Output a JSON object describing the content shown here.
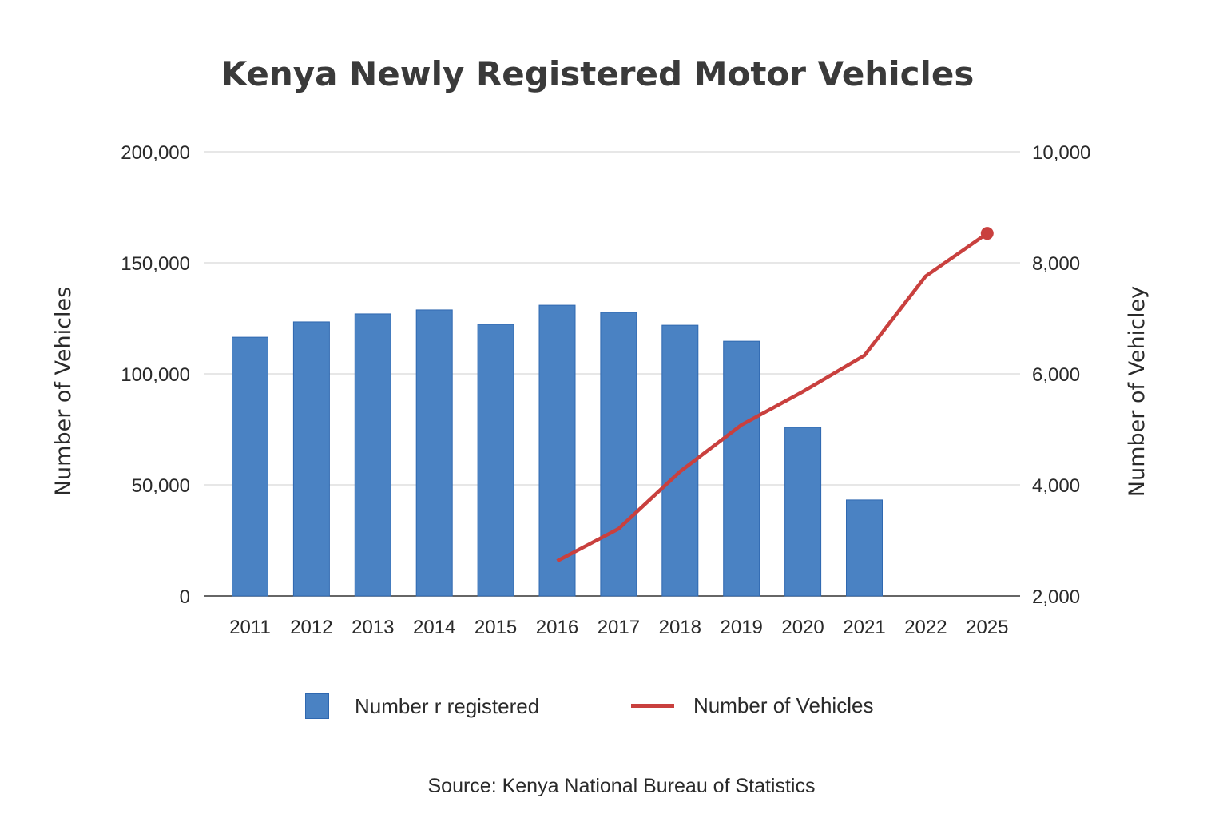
{
  "chart_data": {
    "type": "bar+line",
    "title": "Kenya Newly Registered Motor Vehicles",
    "categories": [
      "2011",
      "2012",
      "2013",
      "2014",
      "2015",
      "2016",
      "2017",
      "2018",
      "2019",
      "2020",
      "2021",
      "2022",
      "2025"
    ],
    "series": [
      {
        "name": "Number r registered",
        "type": "bar",
        "axis": "left",
        "color": "#4a82c3",
        "values": [
          116500,
          123400,
          127000,
          128800,
          122300,
          130900,
          127700,
          121900,
          114700,
          75900,
          43200,
          null,
          null
        ]
      },
      {
        "name": "Number of Vehicles",
        "type": "line",
        "axis": "right",
        "color": "#c9403e",
        "values": [
          null,
          null,
          null,
          null,
          null,
          2630,
          3210,
          4240,
          5080,
          5680,
          6330,
          7760,
          8530
        ],
        "end_marker": true
      }
    ],
    "left_axis": {
      "label": "Number of Vehicles",
      "range": [
        0,
        200000
      ],
      "ticks": [
        0,
        50000,
        100000,
        150000,
        200000
      ],
      "tick_labels": [
        "0",
        "50,000",
        "100,000",
        "150,000",
        "200,000"
      ]
    },
    "right_axis": {
      "label": "Number of Vehicley",
      "range": [
        2000,
        10000
      ],
      "ticks": [
        2000,
        4000,
        6000,
        8000,
        10000
      ],
      "tick_labels": [
        "2,000",
        "4,000",
        "6,000",
        "8,000",
        "10,000"
      ]
    },
    "grid": true,
    "legend_position": "bottom-center",
    "source": "Source: Kenya National Bureau of Statistics"
  }
}
